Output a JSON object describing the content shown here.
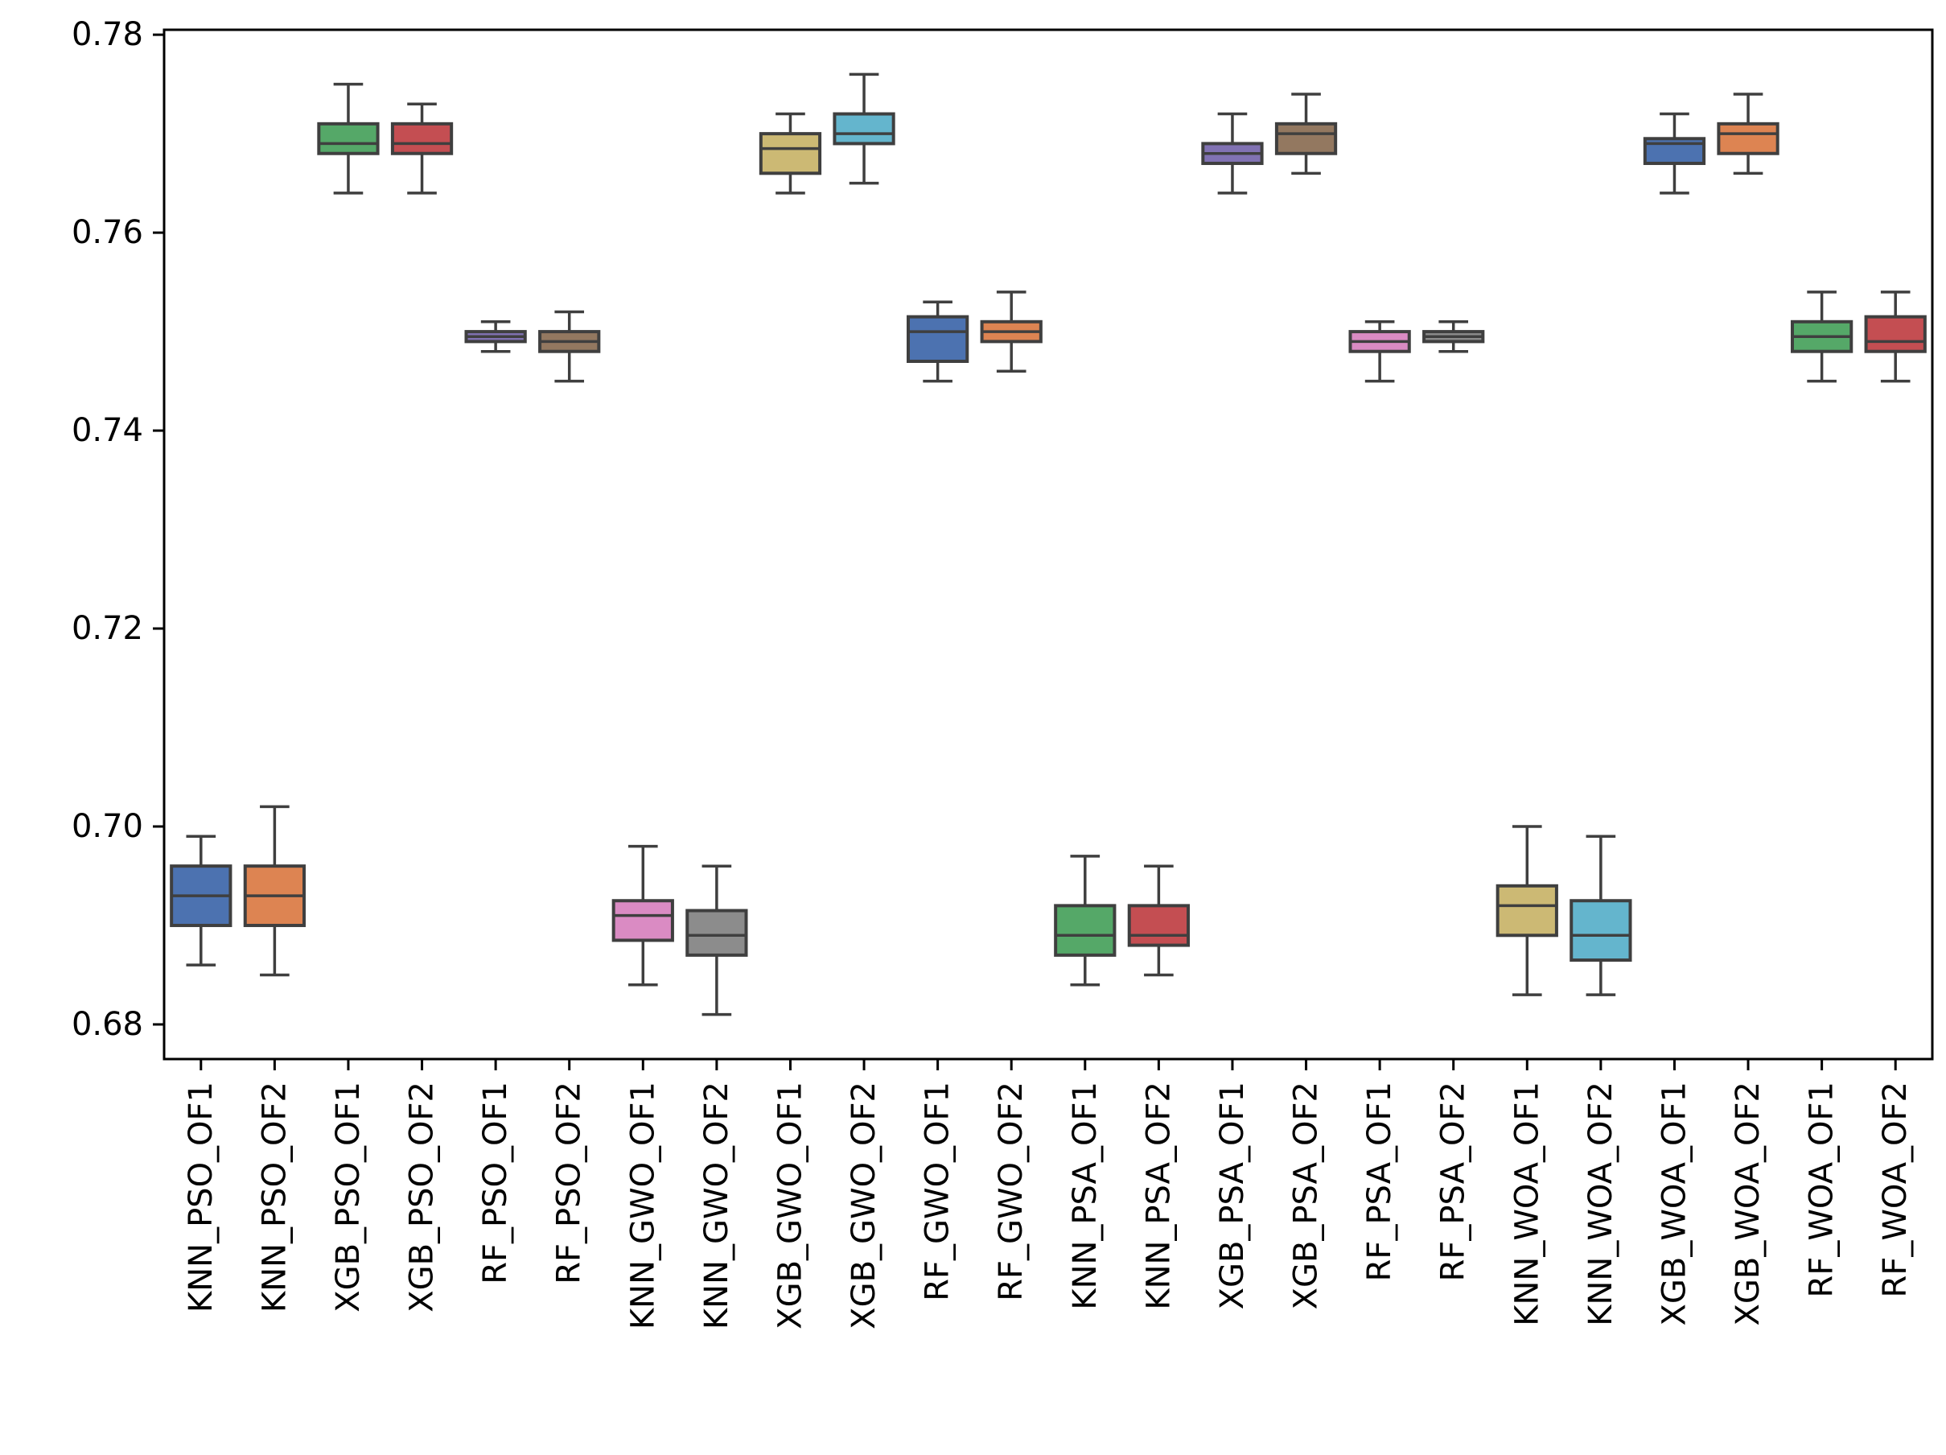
{
  "chart_data": {
    "type": "box",
    "title": "",
    "xlabel": "",
    "ylabel": "",
    "ylim": [
      0.6765,
      0.7805
    ],
    "yticks": [
      0.68,
      0.7,
      0.72,
      0.74,
      0.76,
      0.78
    ],
    "ytick_labels": [
      "0.68",
      "0.70",
      "0.72",
      "0.74",
      "0.76",
      "0.78"
    ],
    "categories": [
      "KNN_PSO_OF1",
      "KNN_PSO_OF2",
      "XGB_PSO_OF1",
      "XGB_PSO_OF2",
      "RF_PSO_OF1",
      "RF_PSO_OF2",
      "KNN_GWO_OF1",
      "KNN_GWO_OF2",
      "XGB_GWO_OF1",
      "XGB_GWO_OF2",
      "RF_GWO_OF1",
      "RF_GWO_OF2",
      "KNN_PSA_OF1",
      "KNN_PSA_OF2",
      "XGB_PSA_OF1",
      "XGB_PSA_OF2",
      "RF_PSA_OF1",
      "RF_PSA_OF2",
      "KNN_WOA_OF1",
      "KNN_WOA_OF2",
      "XGB_WOA_OF1",
      "XGB_WOA_OF2",
      "RF_WOA_OF1",
      "RF_WOA_OF2"
    ],
    "boxes": [
      {
        "min": 0.686,
        "q1": 0.69,
        "median": 0.693,
        "q3": 0.696,
        "max": 0.699,
        "color": "#4c72b0"
      },
      {
        "min": 0.685,
        "q1": 0.69,
        "median": 0.693,
        "q3": 0.696,
        "max": 0.702,
        "color": "#dd8452"
      },
      {
        "min": 0.764,
        "q1": 0.768,
        "median": 0.769,
        "q3": 0.771,
        "max": 0.775,
        "color": "#55a868"
      },
      {
        "min": 0.764,
        "q1": 0.768,
        "median": 0.769,
        "q3": 0.771,
        "max": 0.773,
        "color": "#c44e52"
      },
      {
        "min": 0.748,
        "q1": 0.749,
        "median": 0.7495,
        "q3": 0.75,
        "max": 0.751,
        "color": "#8172b3"
      },
      {
        "min": 0.745,
        "q1": 0.748,
        "median": 0.749,
        "q3": 0.75,
        "max": 0.752,
        "color": "#937860"
      },
      {
        "min": 0.684,
        "q1": 0.6885,
        "median": 0.691,
        "q3": 0.6925,
        "max": 0.698,
        "color": "#da8bc3"
      },
      {
        "min": 0.681,
        "q1": 0.687,
        "median": 0.689,
        "q3": 0.6915,
        "max": 0.696,
        "color": "#8c8c8c"
      },
      {
        "min": 0.764,
        "q1": 0.766,
        "median": 0.7685,
        "q3": 0.77,
        "max": 0.772,
        "color": "#ccb974"
      },
      {
        "min": 0.765,
        "q1": 0.769,
        "median": 0.77,
        "q3": 0.772,
        "max": 0.776,
        "color": "#64b5cd"
      },
      {
        "min": 0.745,
        "q1": 0.747,
        "median": 0.75,
        "q3": 0.7515,
        "max": 0.753,
        "color": "#4c72b0"
      },
      {
        "min": 0.746,
        "q1": 0.749,
        "median": 0.75,
        "q3": 0.751,
        "max": 0.754,
        "color": "#dd8452"
      },
      {
        "min": 0.684,
        "q1": 0.687,
        "median": 0.689,
        "q3": 0.692,
        "max": 0.697,
        "color": "#55a868"
      },
      {
        "min": 0.685,
        "q1": 0.688,
        "median": 0.689,
        "q3": 0.692,
        "max": 0.696,
        "color": "#c44e52"
      },
      {
        "min": 0.764,
        "q1": 0.767,
        "median": 0.768,
        "q3": 0.769,
        "max": 0.772,
        "color": "#8172b3"
      },
      {
        "min": 0.766,
        "q1": 0.768,
        "median": 0.77,
        "q3": 0.771,
        "max": 0.774,
        "color": "#937860"
      },
      {
        "min": 0.745,
        "q1": 0.748,
        "median": 0.749,
        "q3": 0.75,
        "max": 0.751,
        "color": "#da8bc3"
      },
      {
        "min": 0.748,
        "q1": 0.749,
        "median": 0.7495,
        "q3": 0.75,
        "max": 0.751,
        "color": "#8c8c8c"
      },
      {
        "min": 0.683,
        "q1": 0.689,
        "median": 0.692,
        "q3": 0.694,
        "max": 0.7,
        "color": "#ccb974"
      },
      {
        "min": 0.683,
        "q1": 0.6865,
        "median": 0.689,
        "q3": 0.6925,
        "max": 0.699,
        "color": "#64b5cd"
      },
      {
        "min": 0.764,
        "q1": 0.767,
        "median": 0.769,
        "q3": 0.7695,
        "max": 0.772,
        "color": "#4c72b0"
      },
      {
        "min": 0.766,
        "q1": 0.768,
        "median": 0.77,
        "q3": 0.771,
        "max": 0.774,
        "color": "#dd8452"
      },
      {
        "min": 0.745,
        "q1": 0.748,
        "median": 0.7495,
        "q3": 0.751,
        "max": 0.754,
        "color": "#55a868"
      },
      {
        "min": 0.745,
        "q1": 0.748,
        "median": 0.749,
        "q3": 0.7515,
        "max": 0.754,
        "color": "#c44e52"
      }
    ],
    "line_color": "#3f3f3f",
    "grid": false,
    "legend": "none"
  }
}
